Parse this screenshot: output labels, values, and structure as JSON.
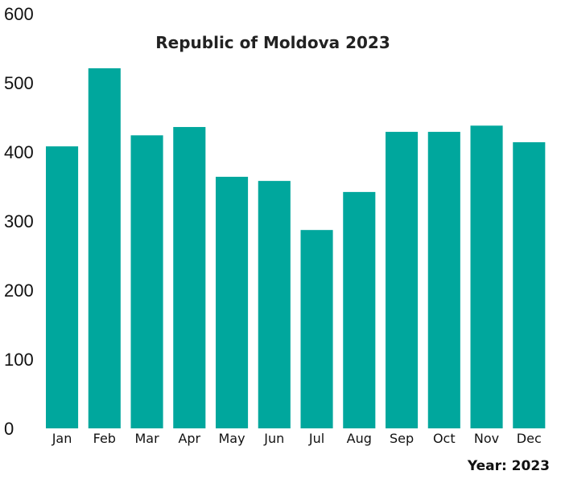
{
  "chart_data": {
    "type": "bar",
    "title": "Republic of Moldova 2023",
    "categories": [
      "Jan",
      "Feb",
      "Mar",
      "Apr",
      "May",
      "Jun",
      "Jul",
      "Aug",
      "Sep",
      "Oct",
      "Nov",
      "Dec"
    ],
    "values": [
      408,
      521,
      424,
      436,
      364,
      358,
      287,
      342,
      429,
      429,
      438,
      414
    ],
    "ylim": [
      0,
      600
    ],
    "yticks": [
      0,
      100,
      200,
      300,
      400,
      500,
      600
    ],
    "xlabel": "",
    "ylabel": "",
    "grid": false,
    "bar_color": "#00A79D",
    "footer_note": "Year: 2023"
  }
}
